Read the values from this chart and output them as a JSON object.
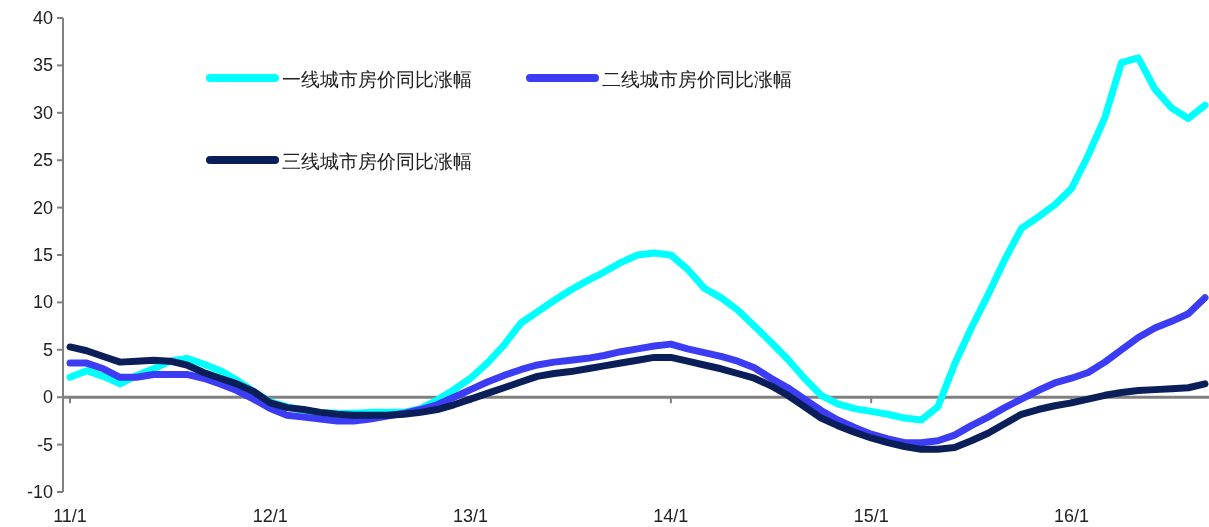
{
  "chart_data": {
    "type": "line",
    "ylim": [
      -10,
      40
    ],
    "yticks": [
      -10,
      -5,
      0,
      5,
      10,
      15,
      20,
      25,
      30,
      35,
      40
    ],
    "categories": [
      "11/1",
      null,
      null,
      null,
      null,
      null,
      null,
      null,
      null,
      null,
      null,
      null,
      "12/1",
      null,
      null,
      null,
      null,
      null,
      null,
      null,
      null,
      null,
      null,
      null,
      "13/1",
      null,
      null,
      null,
      null,
      null,
      null,
      null,
      null,
      null,
      null,
      null,
      "14/1",
      null,
      null,
      null,
      null,
      null,
      null,
      null,
      null,
      null,
      null,
      null,
      "15/1",
      null,
      null,
      null,
      null,
      null,
      null,
      null,
      null,
      null,
      null,
      null,
      "16/1",
      null,
      null,
      null,
      null,
      null,
      null,
      null,
      null
    ],
    "grid": false,
    "legend": "top left",
    "marker": "none",
    "line_style": "solid",
    "ref_lines": [
      {
        "axis": "y",
        "value": 0,
        "label": null,
        "color": "#808080"
      }
    ],
    "series": [
      {
        "name": "一线城市房价同比涨幅",
        "color": "#00ffff",
        "values": [
          2.1,
          2.8,
          2.2,
          1.4,
          2.3,
          3.0,
          3.8,
          4.1,
          3.5,
          2.8,
          1.8,
          0.6,
          -0.5,
          -1.0,
          -1.4,
          -1.6,
          -1.7,
          -1.7,
          -1.6,
          -1.6,
          -1.6,
          -1.2,
          -0.3,
          0.8,
          2.0,
          3.6,
          5.5,
          7.8,
          9.0,
          10.2,
          11.3,
          12.3,
          13.2,
          14.2,
          15.0,
          15.2,
          15.0,
          13.5,
          11.5,
          10.5,
          9.2,
          7.5,
          5.8,
          4.0,
          2.0,
          0.2,
          -0.7,
          -1.2,
          -1.5,
          -1.8,
          -2.2,
          -2.4,
          -1.0,
          3.5,
          7.3,
          10.8,
          14.5,
          17.8,
          19.0,
          20.3,
          22.0,
          25.5,
          29.5,
          35.3,
          35.8,
          32.5,
          30.5,
          29.4,
          30.8
        ]
      },
      {
        "name": "二线城市房价同比涨幅",
        "color": "#3c3cf5",
        "values": [
          3.6,
          3.6,
          3.0,
          2.1,
          2.1,
          2.4,
          2.4,
          2.4,
          2.0,
          1.4,
          0.7,
          -0.2,
          -1.2,
          -1.9,
          -2.1,
          -2.3,
          -2.5,
          -2.5,
          -2.3,
          -2.0,
          -1.7,
          -1.3,
          -0.8,
          0.0,
          0.8,
          1.6,
          2.3,
          2.9,
          3.4,
          3.7,
          3.9,
          4.1,
          4.4,
          4.8,
          5.1,
          5.4,
          5.6,
          5.1,
          4.7,
          4.3,
          3.8,
          3.1,
          2.0,
          1.0,
          -0.2,
          -1.4,
          -2.4,
          -3.2,
          -3.9,
          -4.4,
          -4.8,
          -4.8,
          -4.6,
          -4.0,
          -3.0,
          -2.1,
          -1.1,
          -0.2,
          0.7,
          1.5,
          2.0,
          2.6,
          3.7,
          5.0,
          6.3,
          7.3,
          8.0,
          8.8,
          10.5
        ]
      },
      {
        "name": "三线城市房价同比涨幅",
        "color": "#0a1e5a",
        "values": [
          5.3,
          4.9,
          4.3,
          3.7,
          3.8,
          3.9,
          3.8,
          3.4,
          2.6,
          2.0,
          1.4,
          0.6,
          -0.6,
          -1.1,
          -1.3,
          -1.6,
          -1.8,
          -1.9,
          -1.9,
          -1.9,
          -1.8,
          -1.6,
          -1.3,
          -0.8,
          -0.2,
          0.4,
          1.0,
          1.6,
          2.2,
          2.5,
          2.7,
          3.0,
          3.3,
          3.6,
          3.9,
          4.2,
          4.2,
          3.8,
          3.4,
          3.0,
          2.5,
          2.0,
          1.2,
          0.2,
          -1.0,
          -2.2,
          -3.0,
          -3.7,
          -4.3,
          -4.8,
          -5.2,
          -5.5,
          -5.5,
          -5.3,
          -4.6,
          -3.8,
          -2.8,
          -1.8,
          -1.3,
          -0.9,
          -0.6,
          -0.2,
          0.2,
          0.5,
          0.7,
          0.8,
          0.9,
          1.0,
          1.4
        ]
      }
    ]
  }
}
